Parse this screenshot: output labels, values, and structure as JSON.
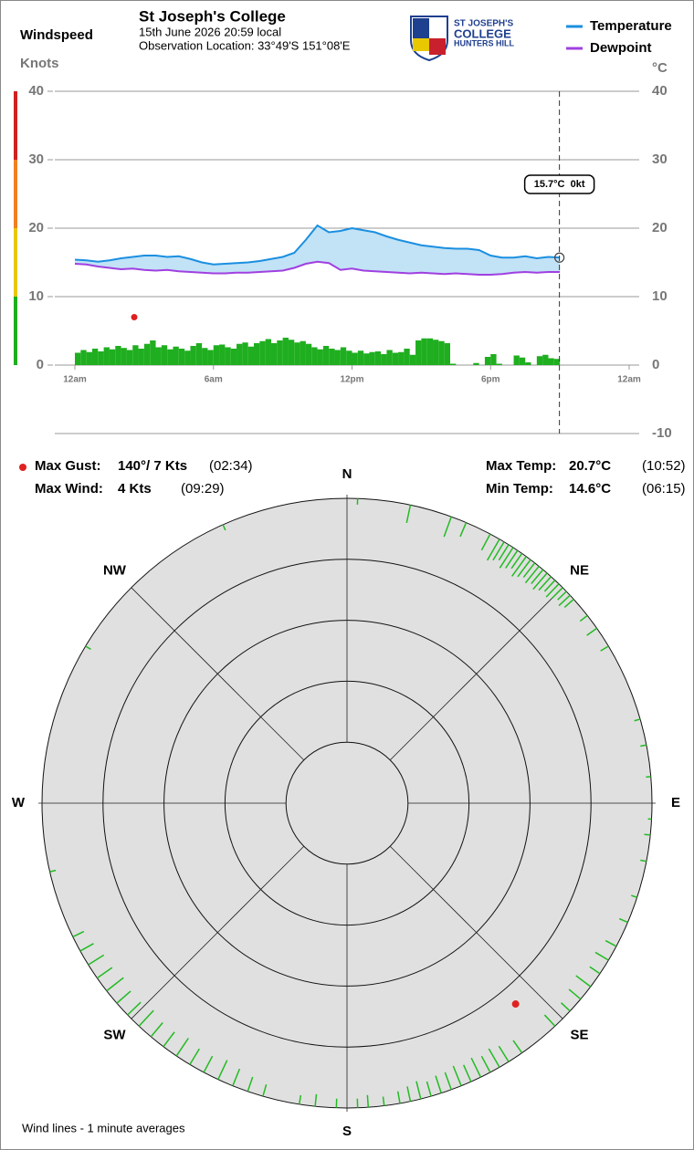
{
  "header": {
    "title": "St Joseph's College",
    "subtitle": "15th June 2026  20:59 local",
    "location": "Observation Location: 33°49'S 151°08'E",
    "logo": [
      "ST JOSEPH'S",
      "COLLEGE",
      "HUNTERS HILL"
    ]
  },
  "stats": [
    {
      "label": "Max Gust:",
      "value": "140°/ 7 Kts",
      "time": "(02:34)"
    },
    {
      "label": "Max Wind:",
      "value": "4 Kts",
      "time": "(09:29)"
    },
    {
      "label": "Max Temp:",
      "value": "20.7°C",
      "time": "(10:52)"
    },
    {
      "label": "Min Temp:",
      "value": "14.6°C",
      "time": "(06:15)"
    }
  ],
  "chart_data": [
    {
      "type": "line",
      "y_label": "Windspeed",
      "y_units": "Knots",
      "y2_units": "°C",
      "xlim": [
        0,
        24
      ],
      "xticks": [
        {
          "value": 0,
          "label": "12am"
        },
        {
          "value": 6,
          "label": "6am"
        },
        {
          "value": 12,
          "label": "12pm"
        },
        {
          "value": 18,
          "label": "6pm"
        },
        {
          "value": 24,
          "label": "12am"
        }
      ],
      "ylim": [
        0,
        40
      ],
      "yticks": [
        0,
        10,
        20,
        30,
        40
      ],
      "y2lim": [
        -10,
        40
      ],
      "y2ticks": [
        -10,
        0,
        10,
        20,
        30,
        40
      ],
      "grid": true,
      "legend": "upper right",
      "x": [
        0,
        0.5,
        1,
        1.5,
        2,
        2.5,
        3,
        3.5,
        4,
        4.5,
        5,
        5.5,
        6,
        6.5,
        7,
        7.5,
        8,
        8.5,
        9,
        9.5,
        10,
        10.5,
        11,
        11.5,
        12,
        12.5,
        13,
        13.5,
        14,
        14.5,
        15,
        15.5,
        16,
        16.5,
        17,
        17.5,
        18,
        18.5,
        19,
        19.5,
        20,
        20.5,
        21
      ],
      "series": [
        {
          "name": "Temperature",
          "color": "#1a8fe0",
          "axis": "y2",
          "values": [
            15.4,
            15.3,
            15.1,
            15.3,
            15.6,
            15.8,
            16.0,
            16.0,
            15.8,
            15.9,
            15.5,
            15.0,
            14.7,
            14.8,
            14.9,
            15.0,
            15.2,
            15.5,
            15.8,
            16.4,
            18.3,
            20.4,
            19.4,
            19.6,
            20.0,
            19.7,
            19.4,
            18.8,
            18.3,
            17.9,
            17.5,
            17.3,
            17.1,
            17.0,
            17.0,
            16.8,
            16.0,
            15.7,
            15.7,
            15.9,
            15.6,
            15.8,
            15.7
          ]
        },
        {
          "name": "Dewpoint",
          "color": "#a040e0",
          "axis": "y2",
          "values": [
            14.8,
            14.7,
            14.4,
            14.2,
            14.0,
            14.1,
            13.9,
            13.8,
            13.9,
            13.7,
            13.6,
            13.5,
            13.4,
            13.4,
            13.5,
            13.5,
            13.6,
            13.7,
            13.8,
            14.2,
            14.8,
            15.1,
            14.9,
            13.9,
            14.1,
            13.8,
            13.7,
            13.6,
            13.5,
            13.4,
            13.5,
            13.4,
            13.3,
            13.4,
            13.3,
            13.2,
            13.2,
            13.3,
            13.5,
            13.6,
            13.5,
            13.6,
            13.6
          ]
        }
      ],
      "fill_color": "#c2e2f6",
      "wind": {
        "color": "#1fae1f",
        "x": [
          0,
          0.25,
          0.5,
          0.75,
          1,
          1.25,
          1.5,
          1.75,
          2,
          2.25,
          2.5,
          2.75,
          3,
          3.25,
          3.5,
          3.75,
          4,
          4.25,
          4.5,
          4.75,
          5,
          5.25,
          5.5,
          5.75,
          6,
          6.25,
          6.5,
          6.75,
          7,
          7.25,
          7.5,
          7.75,
          8,
          8.25,
          8.5,
          8.75,
          9,
          9.25,
          9.5,
          9.75,
          10,
          10.25,
          10.5,
          10.75,
          11,
          11.25,
          11.5,
          11.75,
          12,
          12.25,
          12.5,
          12.75,
          13,
          13.25,
          13.5,
          13.75,
          14,
          14.25,
          14.5,
          14.75,
          15,
          15.25,
          15.5,
          15.75,
          16,
          16.25,
          16.5,
          16.75,
          17,
          17.25,
          17.5,
          17.75,
          18,
          18.25,
          18.5,
          18.75,
          19,
          19.25,
          19.5,
          19.75,
          20,
          20.25,
          20.5,
          20.75
        ],
        "values": [
          1.8,
          2.2,
          1.9,
          2.4,
          2.0,
          2.6,
          2.3,
          2.8,
          2.5,
          2.2,
          2.9,
          2.4,
          3.1,
          3.6,
          2.6,
          2.9,
          2.3,
          2.7,
          2.4,
          2.1,
          2.8,
          3.2,
          2.5,
          2.2,
          2.9,
          3.0,
          2.6,
          2.4,
          3.1,
          3.3,
          2.7,
          3.2,
          3.5,
          3.8,
          3.2,
          3.6,
          4.0,
          3.7,
          3.3,
          3.5,
          3.1,
          2.6,
          2.3,
          2.8,
          2.4,
          2.2,
          2.6,
          2.1,
          1.8,
          2.1,
          1.7,
          1.9,
          2.0,
          1.6,
          2.2,
          1.8,
          1.9,
          2.4,
          1.5,
          3.6,
          3.9,
          3.9,
          3.7,
          3.5,
          3.2,
          0.2,
          0,
          0,
          0,
          0.3,
          0,
          1.2,
          1.6,
          0.2,
          0,
          0,
          1.4,
          1.1,
          0.4,
          0,
          1.3,
          1.5,
          1.0,
          0.9
        ]
      },
      "speed_bands": [
        {
          "from": 0,
          "to": 10,
          "color": "#1fae1f"
        },
        {
          "from": 10,
          "to": 20,
          "color": "#e8c800"
        },
        {
          "from": 20,
          "to": 30,
          "color": "#f08020"
        },
        {
          "from": 30,
          "to": 40,
          "color": "#d02020"
        }
      ],
      "gust": {
        "x": 2.57,
        "value": 7,
        "color": "#e02020"
      },
      "cursor": {
        "x": 20.98,
        "value": 15.7,
        "label": "15.7°C  0kt"
      }
    },
    {
      "type": "polar",
      "compass": [
        "N",
        "NE",
        "E",
        "SE",
        "S",
        "SW",
        "W",
        "NW"
      ],
      "rlim": [
        50,
        0
      ],
      "rticks": [
        0,
        10,
        20,
        30,
        40
      ],
      "color": "#22bb22",
      "directions": [
        2,
        12,
        20,
        23,
        28,
        30,
        31,
        32,
        33,
        34,
        35,
        36,
        37,
        38,
        39,
        40,
        41,
        42,
        43,
        44,
        45,
        46,
        47,
        48,
        52,
        55,
        59,
        74,
        79,
        85,
        93,
        96,
        101,
        108,
        113,
        118,
        121,
        124,
        127,
        130,
        133,
        137,
        145,
        148,
        150,
        152,
        154,
        156,
        158,
        160,
        162,
        164,
        166,
        168,
        170,
        173,
        176,
        178,
        182,
        186,
        189,
        196,
        199,
        202,
        205,
        208,
        211,
        214,
        217,
        220,
        223,
        226,
        229,
        232,
        235,
        238,
        241,
        244,
        257,
        301,
        336
      ],
      "speeds": [
        1,
        3,
        3.5,
        2.5,
        3,
        4,
        3.5,
        3,
        4,
        3.5,
        3,
        4,
        3.5,
        3,
        3.5,
        3,
        3.5,
        3,
        2.5,
        3,
        2.5,
        2,
        2.5,
        2,
        1.5,
        2,
        1.5,
        1,
        1,
        0.8,
        0.6,
        1,
        1,
        1,
        1.5,
        2,
        2.5,
        2,
        3,
        2.5,
        2,
        2.5,
        2.5,
        3,
        3.5,
        3,
        3.5,
        3,
        3.5,
        3,
        3,
        2.5,
        3,
        2.5,
        2,
        1.5,
        2,
        1.5,
        1.5,
        2,
        1.5,
        2,
        2.5,
        3,
        3.5,
        3,
        3,
        3.5,
        3,
        3,
        3.5,
        3,
        3,
        3.5,
        3,
        3,
        2.5,
        2,
        1,
        1,
        1
      ],
      "gust": {
        "direction": 140,
        "speed": 7,
        "color": "#e02020"
      },
      "note": "Wind lines - 1 minute averages"
    }
  ]
}
